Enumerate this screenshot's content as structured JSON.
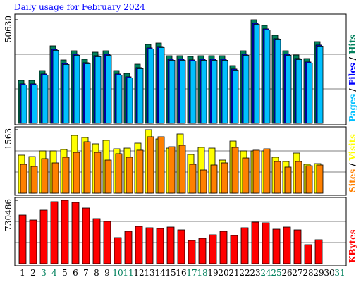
{
  "title": "Daily usage for February 2024",
  "chart_data": [
    {
      "type": "bar",
      "categories": [
        "1",
        "2",
        "3",
        "4",
        "5",
        "6",
        "7",
        "8",
        "9",
        "10",
        "11",
        "12",
        "13",
        "14",
        "15",
        "16",
        "17",
        "18",
        "19",
        "20",
        "21",
        "22",
        "23",
        "24",
        "25",
        "26",
        "27",
        "28",
        "29",
        "30",
        "31"
      ],
      "category_colors": [
        "#000000",
        "#000000",
        "#00805c",
        "#00805c",
        "#000000",
        "#000000",
        "#000000",
        "#000000",
        "#000000",
        "#00805c",
        "#00805c",
        "#000000",
        "#000000",
        "#000000",
        "#000000",
        "#000000",
        "#00805c",
        "#00805c",
        "#000000",
        "#000000",
        "#000000",
        "#000000",
        "#000000",
        "#00805c",
        "#00805c",
        "#000000",
        "#000000",
        "#000000",
        "#000000",
        "#000000",
        "#00805c"
      ],
      "ylim": [
        0,
        50630
      ],
      "yticks": [
        50630
      ],
      "gridlines": [
        16877,
        33753
      ],
      "legend_separator": "/",
      "series": [
        {
          "name": "Hits",
          "color": "#00805c",
          "values": [
            21010,
            21010,
            25830,
            37890,
            31000,
            35470,
            31340,
            34790,
            35470,
            25830,
            24450,
            28930,
            38570,
            39260,
            33060,
            33060,
            32720,
            33060,
            33060,
            33060,
            28240,
            35470,
            50630,
            47870,
            43050,
            35470,
            33410,
            31680,
            39950,
            null,
            null
          ]
        },
        {
          "name": "Files",
          "color": "#0000ff",
          "values": [
            19310,
            19310,
            24130,
            36190,
            29300,
            33770,
            29640,
            33090,
            33770,
            24130,
            22750,
            27230,
            36870,
            37560,
            31360,
            31360,
            31020,
            31360,
            31360,
            31360,
            26540,
            33770,
            48930,
            46170,
            41350,
            33770,
            31710,
            29980,
            38250,
            null,
            null
          ]
        },
        {
          "name": "Pages",
          "color": "#00c0ff",
          "values": [
            18810,
            18810,
            23630,
            35690,
            28800,
            33270,
            29140,
            32590,
            33270,
            23630,
            22250,
            26730,
            36370,
            37060,
            30860,
            30860,
            30520,
            30860,
            30860,
            30860,
            26040,
            33270,
            48430,
            45670,
            40850,
            33270,
            31210,
            29480,
            37750,
            null,
            null
          ]
        }
      ]
    },
    {
      "type": "bar",
      "ylim": [
        0,
        1563
      ],
      "yticks": [
        1563
      ],
      "gridlines": [
        521,
        1042
      ],
      "legend_separator": "/",
      "series": [
        {
          "name": "Visits",
          "color": "#ffff00",
          "values": [
            938,
            903,
            1042,
            1042,
            1077,
            1424,
            1372,
            1216,
            1303,
            1094,
            1111,
            1233,
            1563,
            1337,
            1111,
            1459,
            955,
            1129,
            1111,
            816,
            1285,
            1042,
            1042,
            1042,
            886,
            781,
            990,
            712,
            729,
            null,
            null
          ]
        },
        {
          "name": "Sites",
          "color": "#ff8000",
          "values": [
            712,
            660,
            851,
            747,
            886,
            1007,
            1268,
            1007,
            816,
            973,
            886,
            1060,
            1390,
            1390,
            1146,
            1181,
            712,
            573,
            695,
            747,
            1129,
            868,
            1060,
            1094,
            782,
            643,
            782,
            677,
            695,
            null,
            null
          ]
        }
      ]
    },
    {
      "type": "bar",
      "ylim": [
        0,
        730486
      ],
      "yticks": [
        730486
      ],
      "gridlines": [
        243495,
        486991
      ],
      "series": [
        {
          "name": "KBytes",
          "color": "#ff0000",
          "values": [
            560040,
            503220,
            616860,
            714250,
            730486,
            706130,
            641200,
            519460,
            486990,
            300310,
            373360,
            430170,
            413940,
            405830,
            422060,
            389590,
            267840,
            292190,
            332780,
            373360,
            324660,
            413940,
            478870,
            470760,
            397710,
            422060,
            389590,
            219140,
            275960,
            null,
            null
          ]
        }
      ]
    }
  ]
}
